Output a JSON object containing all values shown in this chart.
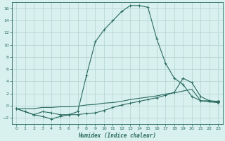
{
  "xlabel": "Humidex (Indice chaleur)",
  "background_color": "#d8f0ee",
  "grid_color": "#b8d8d4",
  "line_color": "#2a6b60",
  "xlim": [
    -0.5,
    23.5
  ],
  "ylim": [
    -3.0,
    17.0
  ],
  "xticks": [
    0,
    1,
    2,
    3,
    4,
    5,
    6,
    7,
    8,
    9,
    10,
    11,
    12,
    13,
    14,
    15,
    16,
    17,
    18,
    19,
    20,
    21,
    22,
    23
  ],
  "yticks": [
    -2,
    0,
    2,
    4,
    6,
    8,
    10,
    12,
    14,
    16
  ],
  "curve1_x": [
    0,
    1,
    2,
    3,
    4,
    5,
    6,
    7,
    8,
    9,
    10,
    11,
    12,
    13,
    14,
    15,
    16,
    17,
    18,
    19,
    20,
    21,
    22,
    23
  ],
  "curve1_y": [
    -0.5,
    -1.0,
    -1.5,
    -1.8,
    -2.2,
    -1.8,
    -1.5,
    -1.0,
    5.0,
    10.5,
    12.5,
    14.0,
    15.5,
    16.5,
    16.5,
    16.2,
    11.0,
    7.0,
    4.5,
    3.5,
    1.5,
    0.8,
    0.8,
    0.7
  ],
  "curve2_x": [
    0,
    1,
    2,
    3,
    4,
    5,
    6,
    7,
    8,
    9,
    10,
    11,
    12,
    13,
    14,
    15,
    16,
    17,
    18,
    19,
    20,
    21,
    22,
    23
  ],
  "curve2_y": [
    -0.5,
    -1.0,
    -1.5,
    -1.0,
    -1.2,
    -1.5,
    -1.5,
    -1.5,
    -1.3,
    -1.2,
    -0.8,
    -0.3,
    0.1,
    0.4,
    0.7,
    1.0,
    1.3,
    1.7,
    2.2,
    4.5,
    3.8,
    1.5,
    0.8,
    0.5
  ],
  "curve3_x": [
    0,
    1,
    2,
    3,
    4,
    5,
    6,
    7,
    8,
    9,
    10,
    11,
    12,
    13,
    14,
    15,
    16,
    17,
    18,
    19,
    20,
    21,
    22,
    23
  ],
  "curve3_y": [
    -0.5,
    -0.5,
    -0.5,
    -0.3,
    -0.3,
    -0.2,
    -0.2,
    -0.1,
    0.1,
    0.2,
    0.4,
    0.5,
    0.7,
    1.0,
    1.2,
    1.4,
    1.6,
    1.9,
    2.1,
    2.4,
    2.7,
    0.8,
    0.6,
    0.5
  ]
}
